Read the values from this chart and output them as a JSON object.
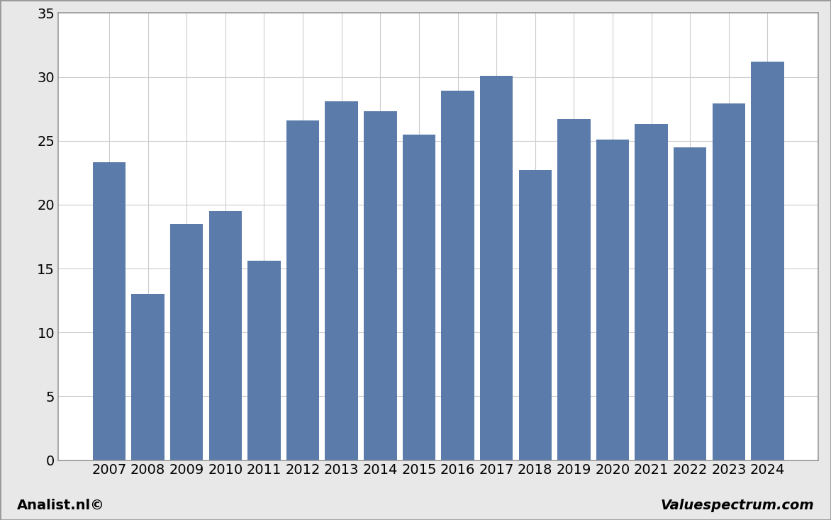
{
  "categories": [
    2007,
    2008,
    2009,
    2010,
    2011,
    2012,
    2013,
    2014,
    2015,
    2016,
    2017,
    2018,
    2019,
    2020,
    2021,
    2022,
    2023,
    2024
  ],
  "values": [
    23.3,
    13.0,
    18.5,
    19.5,
    15.6,
    26.6,
    28.1,
    27.3,
    25.5,
    28.9,
    30.1,
    22.7,
    26.7,
    25.1,
    26.3,
    24.5,
    27.9,
    31.2
  ],
  "bar_color": "#5b7baa",
  "ylim": [
    0,
    35
  ],
  "yticks": [
    0,
    5,
    10,
    15,
    20,
    25,
    30,
    35
  ],
  "background_color": "#e8e8e8",
  "plot_background": "#ffffff",
  "grid_color": "#cccccc",
  "footer_left": "Analist.nl©",
  "footer_right": "Valuespectrum.com",
  "footer_fontsize": 14,
  "tick_fontsize": 14,
  "border_color": "#999999"
}
